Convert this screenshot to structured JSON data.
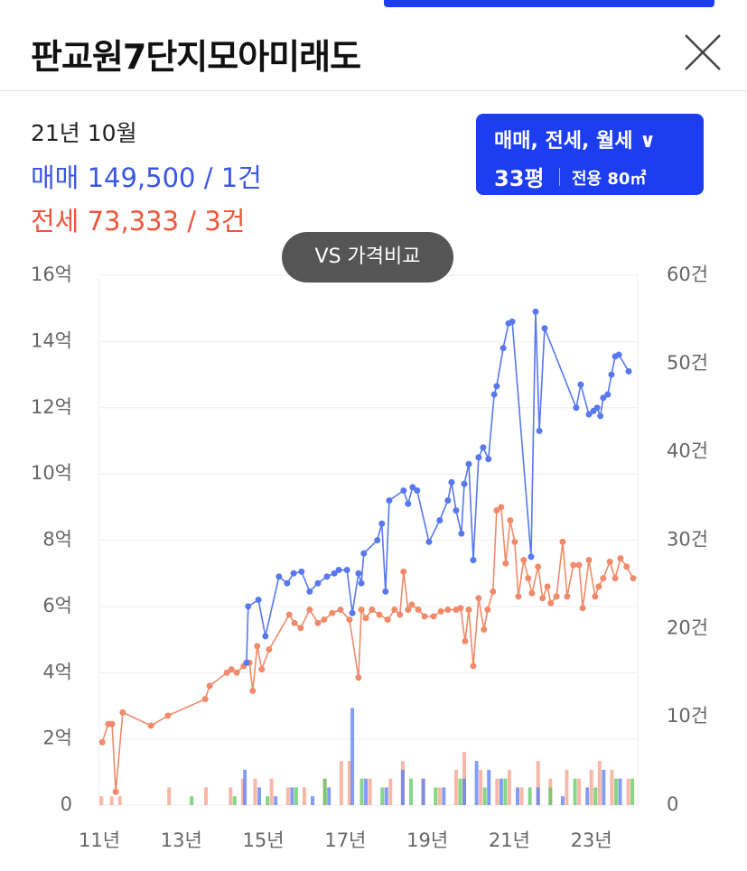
{
  "header": {
    "title": "판교원7단지모아미래도"
  },
  "info": {
    "date": "21년 10월",
    "sale": "매매 149,500 / 1건",
    "jeonse": "전세 73,333 / 3건"
  },
  "filter": {
    "types": "매매, 전세, 월세 ∨",
    "size": "33평",
    "area": "전용 80㎡"
  },
  "compare_button": "VS 가격비교",
  "chart_data": {
    "type": "line",
    "xlim": [
      2011,
      2024.13
    ],
    "xticks": [
      {
        "value": 2011,
        "label": "11년"
      },
      {
        "value": 2013,
        "label": "13년"
      },
      {
        "value": 2015,
        "label": "15년"
      },
      {
        "value": 2017,
        "label": "17년"
      },
      {
        "value": 2019,
        "label": "19년"
      },
      {
        "value": 2021,
        "label": "21년"
      },
      {
        "value": 2023,
        "label": "23년"
      }
    ],
    "ylim": [
      0,
      16
    ],
    "yticks": [
      {
        "value": 0,
        "label": "0"
      },
      {
        "value": 2,
        "label": "2억"
      },
      {
        "value": 4,
        "label": "4억"
      },
      {
        "value": 6,
        "label": "6억"
      },
      {
        "value": 8,
        "label": "8억"
      },
      {
        "value": 10,
        "label": "10억"
      },
      {
        "value": 12,
        "label": "12억"
      },
      {
        "value": 14,
        "label": "14억"
      },
      {
        "value": 16,
        "label": "16억"
      }
    ],
    "y2lim": [
      0,
      60
    ],
    "y2ticks": [
      {
        "value": 0,
        "label": "0"
      },
      {
        "value": 10,
        "label": "10건"
      },
      {
        "value": 20,
        "label": "20건"
      },
      {
        "value": 30,
        "label": "30건"
      },
      {
        "value": 40,
        "label": "40건"
      },
      {
        "value": 50,
        "label": "50건"
      },
      {
        "value": 60,
        "label": "60건"
      }
    ],
    "grid": true,
    "series": [
      {
        "type": "bar",
        "axis": "y2",
        "color": "#f4a08a",
        "x": [
          2011.05,
          2011.3,
          2011.5,
          2012.7,
          2013.6,
          2014.2,
          2014.5,
          2014.8,
          2015.2,
          2015.6,
          2016.0,
          2016.5,
          2016.9,
          2017.1,
          2017.6,
          2018.1,
          2018.4,
          2018.9,
          2019.3,
          2019.7,
          2019.9,
          2020.3,
          2020.7,
          2021.0,
          2021.3,
          2021.7,
          2022.0,
          2022.4,
          2022.7,
          2023.0,
          2023.2,
          2023.5,
          2023.9
        ],
        "values": [
          1,
          1,
          1,
          2,
          2,
          2,
          3,
          3,
          3,
          2,
          2,
          3,
          5,
          5,
          3,
          3,
          5,
          3,
          2,
          4,
          6,
          4,
          3,
          4,
          2,
          5,
          3,
          4,
          3,
          4,
          5,
          4,
          3
        ]
      },
      {
        "type": "bar",
        "axis": "y2",
        "color": "#5b7cf0",
        "x": [
          2014.55,
          2014.9,
          2015.3,
          2015.7,
          2016.2,
          2016.6,
          2017.17,
          2017.5,
          2018.0,
          2018.4,
          2018.9,
          2019.4,
          2019.9,
          2020.2,
          2020.5,
          2020.8,
          2021.2,
          2021.7,
          2022.3,
          2022.9,
          2023.3,
          2023.7
        ],
        "values": [
          4,
          2,
          1,
          2,
          1,
          2,
          11,
          3,
          2,
          4,
          3,
          2,
          3,
          5,
          4,
          3,
          2,
          2,
          1,
          2,
          4,
          3
        ]
      },
      {
        "type": "bar",
        "axis": "y2",
        "color": "#5cc85c",
        "x": [
          2013.25,
          2014.3,
          2015.1,
          2015.8,
          2016.5,
          2017.4,
          2017.9,
          2018.6,
          2019.2,
          2019.8,
          2020.4,
          2020.9,
          2021.5,
          2022.0,
          2022.6,
          2023.1,
          2023.6,
          2024.0
        ],
        "values": [
          1,
          1,
          1,
          2,
          3,
          3,
          2,
          3,
          2,
          3,
          2,
          3,
          2,
          2,
          3,
          2,
          3,
          3
        ]
      },
      {
        "type": "line",
        "color": "#f08a6a",
        "x": [
          2011.07,
          2011.22,
          2011.31,
          2011.4,
          2011.57,
          2012.26,
          2012.67,
          2013.58,
          2013.69,
          2014.11,
          2014.22,
          2014.35,
          2014.52,
          2014.66,
          2014.74,
          2014.85,
          2014.96,
          2015.14,
          2015.63,
          2015.76,
          2015.91,
          2016.13,
          2016.33,
          2016.48,
          2016.68,
          2016.88,
          2017.1,
          2017.32,
          2017.39,
          2017.5,
          2017.65,
          2017.83,
          2018.03,
          2018.2,
          2018.33,
          2018.42,
          2018.53,
          2018.62,
          2018.78,
          2018.93,
          2019.15,
          2019.33,
          2019.5,
          2019.7,
          2019.81,
          2019.92,
          2020.01,
          2020.12,
          2020.25,
          2020.38,
          2020.47,
          2020.6,
          2020.69,
          2020.8,
          2020.91,
          2021.02,
          2021.13,
          2021.22,
          2021.35,
          2021.46,
          2021.55,
          2021.7,
          2021.81,
          2021.93,
          2022.01,
          2022.15,
          2022.3,
          2022.41,
          2022.56,
          2022.7,
          2022.79,
          2022.94,
          2023.09,
          2023.18,
          2023.29,
          2023.45,
          2023.58,
          2023.71,
          2023.86,
          2024.02
        ],
        "values": [
          1.9,
          2.45,
          2.45,
          0.4,
          2.8,
          2.4,
          2.7,
          3.2,
          3.6,
          4.0,
          4.1,
          4.0,
          4.2,
          4.3,
          3.45,
          4.8,
          4.1,
          4.7,
          5.75,
          5.5,
          5.35,
          5.9,
          5.5,
          5.6,
          5.8,
          5.9,
          5.6,
          3.85,
          5.9,
          5.65,
          5.9,
          5.75,
          5.6,
          5.9,
          5.75,
          7.05,
          5.9,
          6.05,
          5.9,
          5.7,
          5.7,
          5.85,
          5.9,
          5.9,
          5.95,
          4.95,
          5.9,
          4.2,
          6.25,
          5.3,
          5.9,
          6.45,
          8.9,
          9.0,
          7.3,
          8.6,
          7.95,
          6.3,
          7.4,
          6.85,
          6.4,
          7.2,
          6.25,
          6.6,
          6.1,
          6.3,
          7.95,
          6.3,
          7.25,
          7.25,
          5.95,
          7.4,
          6.3,
          6.6,
          6.85,
          7.35,
          6.85,
          7.45,
          7.2,
          6.85
        ]
      },
      {
        "type": "line",
        "color": "#5878ee",
        "x": [
          2014.59,
          2014.63,
          2014.88,
          2015.05,
          2015.38,
          2015.58,
          2015.74,
          2015.93,
          2016.13,
          2016.33,
          2016.55,
          2016.73,
          2016.84,
          2017.04,
          2017.17,
          2017.32,
          2017.39,
          2017.45,
          2017.78,
          2017.89,
          2017.98,
          2018.07,
          2018.42,
          2018.53,
          2018.64,
          2018.75,
          2019.04,
          2019.3,
          2019.5,
          2019.59,
          2019.7,
          2019.83,
          2019.9,
          2020.01,
          2020.12,
          2020.25,
          2020.36,
          2020.49,
          2020.63,
          2020.69,
          2020.85,
          2020.98,
          2021.07,
          2021.53,
          2021.64,
          2021.73,
          2021.86,
          2022.63,
          2022.74,
          2022.94,
          2023.05,
          2023.14,
          2023.22,
          2023.29,
          2023.4,
          2023.49,
          2023.58,
          2023.67,
          2023.91
        ],
        "values": [
          4.3,
          6.0,
          6.2,
          5.1,
          6.9,
          6.7,
          7.0,
          7.05,
          6.45,
          6.7,
          6.9,
          7.0,
          7.1,
          7.1,
          5.8,
          7.0,
          6.7,
          7.6,
          8.0,
          8.5,
          6.45,
          9.2,
          9.5,
          9.1,
          9.6,
          9.5,
          7.95,
          8.6,
          9.2,
          9.75,
          8.9,
          8.2,
          9.7,
          10.3,
          7.4,
          10.5,
          10.8,
          10.45,
          12.4,
          12.65,
          13.8,
          14.55,
          14.6,
          7.5,
          14.9,
          11.3,
          14.4,
          12.0,
          12.7,
          11.8,
          11.9,
          12.0,
          11.75,
          12.3,
          12.4,
          13.0,
          13.55,
          13.6,
          13.1
        ]
      }
    ]
  }
}
